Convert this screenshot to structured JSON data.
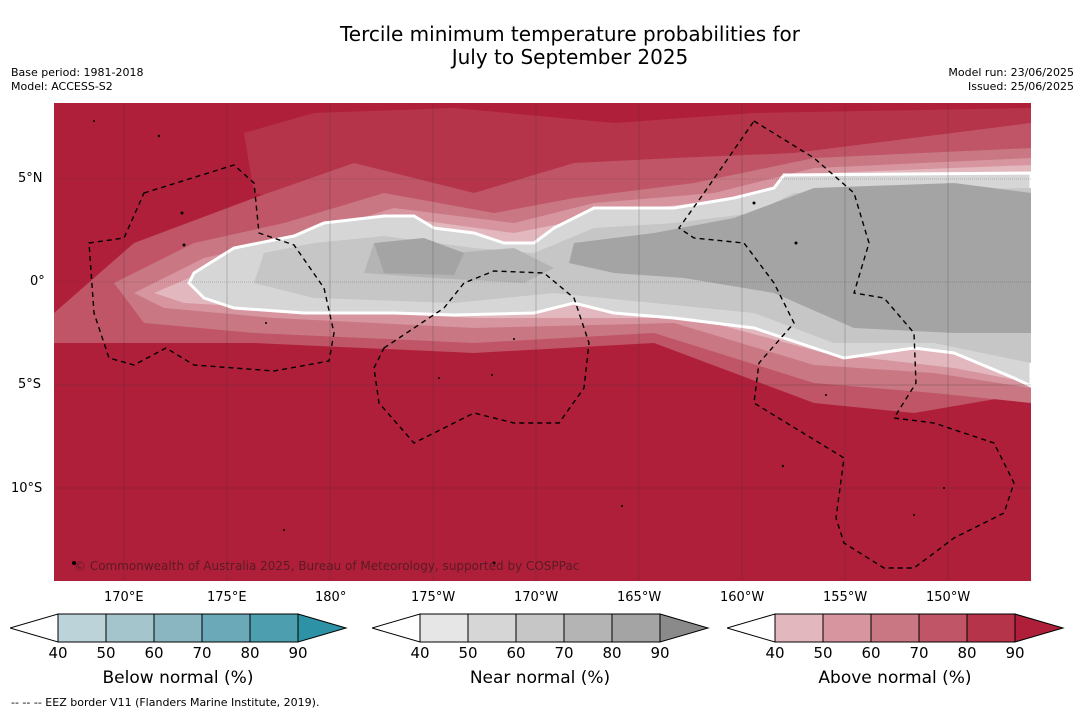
{
  "header": {
    "title_line1": "Tercile minimum temperature probabilities for",
    "title_line2": "July to September 2025",
    "base_period": "Base period: 1981-2018",
    "model": "Model: ACCESS-S2",
    "model_run": "Model run: 23/06/2025",
    "issued": "Issued: 25/06/2025"
  },
  "map": {
    "lat_labels": [
      "5°N",
      "0°",
      "5°S",
      "10°S"
    ],
    "lon_labels": [
      "170°E",
      "175°E",
      "180°",
      "175°W",
      "170°W",
      "165°W",
      "160°W",
      "155°W",
      "150°W"
    ],
    "credit": "© Commonwealth of Australia 2025, Bureau of Meteorology, supported by COSPPac"
  },
  "colorbars": {
    "ticks": [
      "40",
      "50",
      "60",
      "70",
      "80",
      "90"
    ],
    "below": {
      "title": "Below normal (%)",
      "colors": [
        "#bdd3da",
        "#a5c5cc",
        "#8ab6c1",
        "#6ba9b8",
        "#4d9fb0",
        "#2d92a5"
      ]
    },
    "near": {
      "title": "Near normal (%)",
      "colors": [
        "#e6e6e6",
        "#d6d6d6",
        "#c6c6c6",
        "#b4b4b4",
        "#a4a4a4",
        "#8a8a8a"
      ]
    },
    "above": {
      "title": "Above normal (%)",
      "colors": [
        "#e2b7bd",
        "#d6959f",
        "#c97782",
        "#bf5566",
        "#b6344a",
        "#b01f3a"
      ]
    }
  },
  "footer": {
    "legend": "--  --  -- EEZ border V11 (Flanders Marine Institute, 2019)."
  }
}
